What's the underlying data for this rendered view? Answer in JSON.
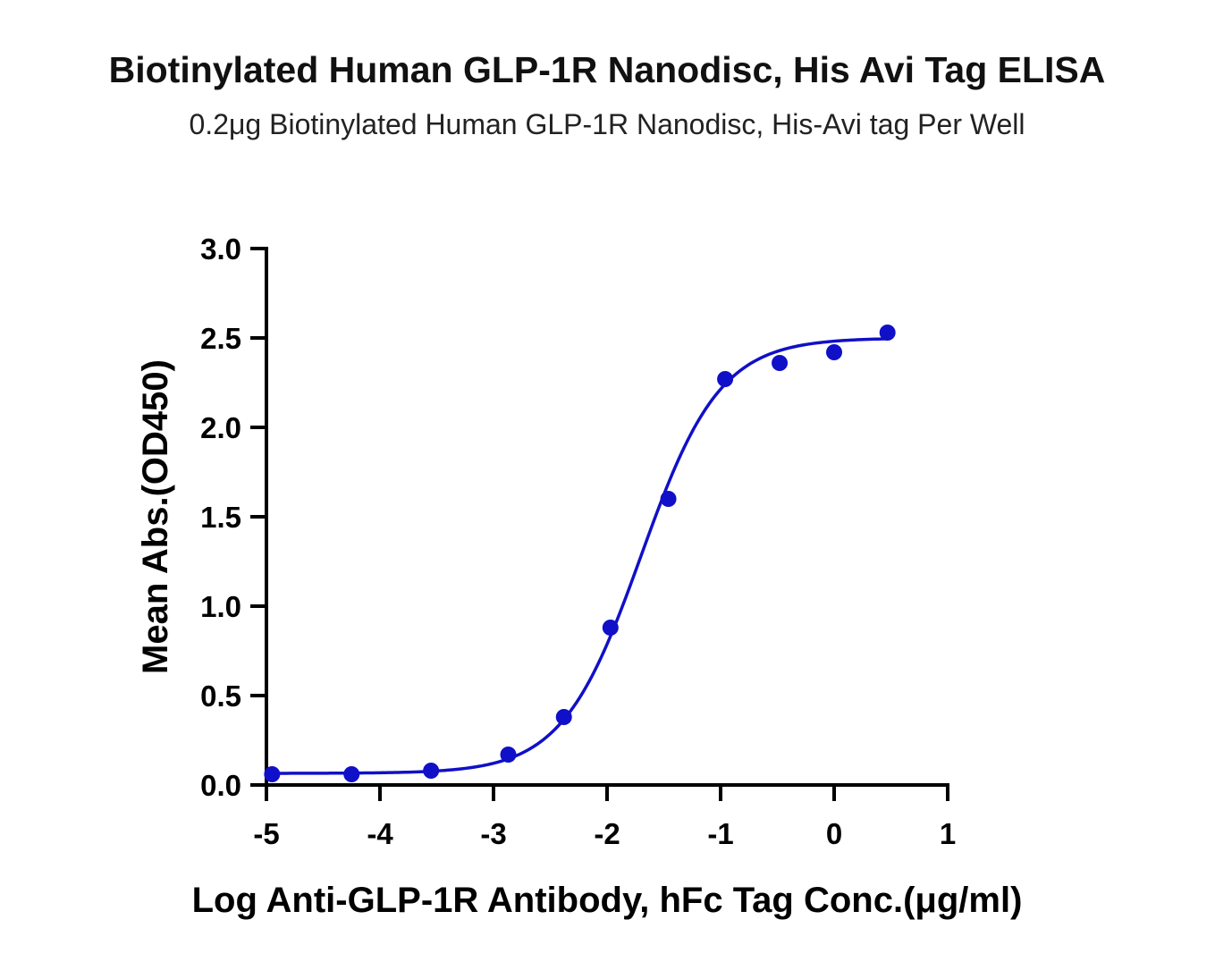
{
  "chart_data": {
    "type": "scatter",
    "title": "Biotinylated Human GLP-1R Nanodisc, His Avi Tag ELISA",
    "subtitle": "0.2μg Biotinylated Human GLP-1R Nanodisc, His-Avi tag Per Well",
    "xlabel": "Log Anti-GLP-1R Antibody, hFc Tag Conc.(μg/ml)",
    "ylabel": "Mean Abs.(OD450)",
    "xlim": [
      -5,
      1
    ],
    "ylim": [
      0,
      3.0
    ],
    "x_ticks": [
      -5,
      -4,
      -3,
      -2,
      -1,
      0,
      1
    ],
    "x_tick_labels": [
      "-5",
      "-4",
      "-3",
      "-2",
      "-1",
      "0",
      "1"
    ],
    "y_ticks": [
      0,
      0.5,
      1.0,
      1.5,
      2.0,
      2.5,
      3.0
    ],
    "y_tick_labels": [
      "0.0",
      "0.5",
      "1.0",
      "1.5",
      "2.0",
      "2.5",
      "3.0"
    ],
    "grid": false,
    "color": "#1010c8",
    "series": [
      {
        "x": [
          -4.95,
          -4.25,
          -3.55,
          -2.87,
          -2.38,
          -1.97,
          -1.46,
          -0.96,
          -0.48,
          0.0,
          0.47
        ],
        "y": [
          0.06,
          0.06,
          0.08,
          0.17,
          0.38,
          0.88,
          1.6,
          2.27,
          2.36,
          2.42,
          2.53
        ]
      }
    ],
    "fit_curve": {
      "model": "4PL",
      "bottom": 0.065,
      "top": 2.5,
      "log_ec50": -1.7,
      "hill_slope": 1.25
    }
  }
}
